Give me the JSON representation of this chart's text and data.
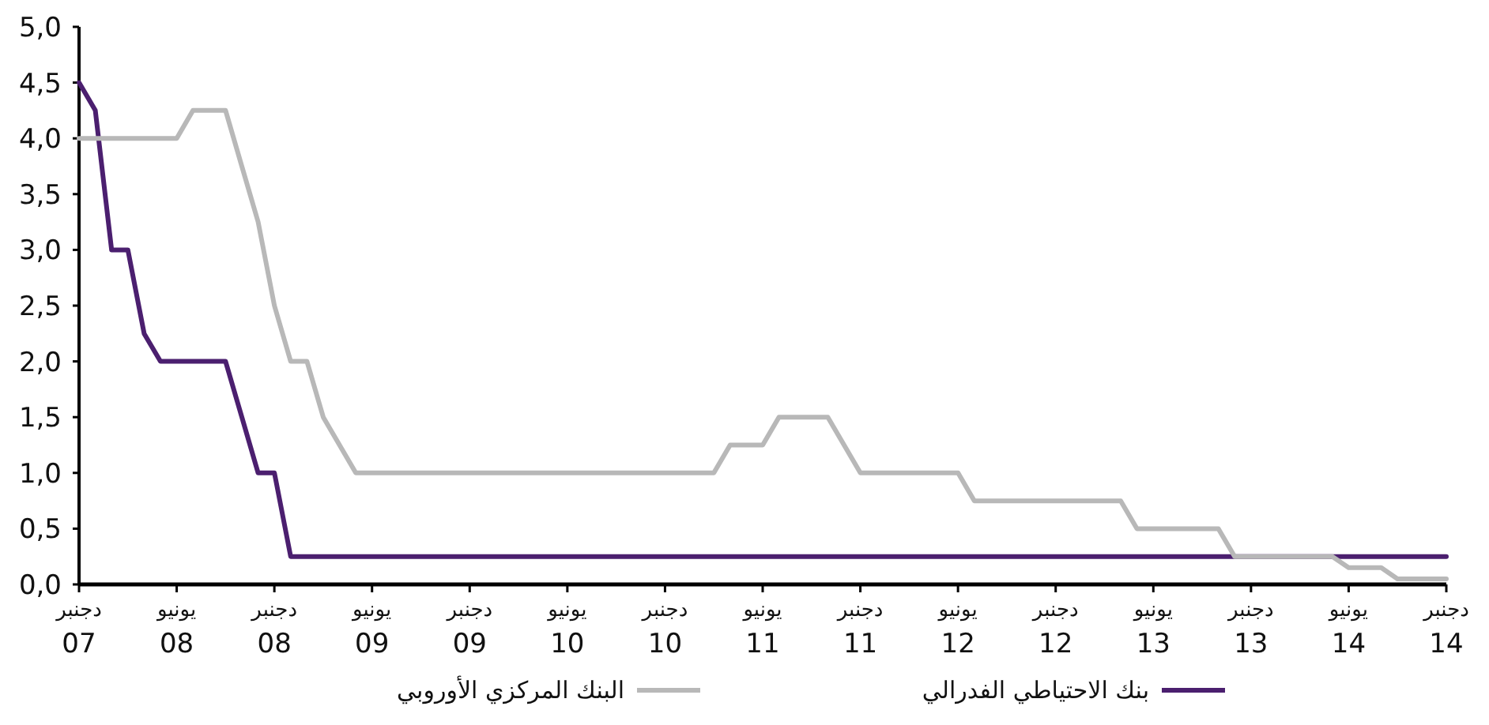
{
  "chart_data": {
    "type": "line",
    "legend": "bottom",
    "grid": false,
    "marker": "none",
    "line_style": "solid",
    "xlim": [
      "2007-12",
      "2014-12"
    ],
    "ylim": [
      0,
      5
    ],
    "yticks": [
      {
        "value": 0,
        "label": "0,0"
      },
      {
        "value": 0.5,
        "label": "0,5"
      },
      {
        "value": 1,
        "label": "1,0"
      },
      {
        "value": 1.5,
        "label": "1,5"
      },
      {
        "value": 2,
        "label": "2,0"
      },
      {
        "value": 2.5,
        "label": "2,5"
      },
      {
        "value": 3,
        "label": "3,0"
      },
      {
        "value": 3.5,
        "label": "3,5"
      },
      {
        "value": 4,
        "label": "4,0"
      },
      {
        "value": 4.5,
        "label": "4,5"
      },
      {
        "value": 5,
        "label": "5,0"
      }
    ],
    "xticks": [
      {
        "value": "2007-12",
        "label": "دجنبر\n07"
      },
      {
        "value": "2008-06",
        "label": "يونيو\n08"
      },
      {
        "value": "2008-12",
        "label": "دجنبر\n08"
      },
      {
        "value": "2009-06",
        "label": "يونيو\n09"
      },
      {
        "value": "2009-12",
        "label": "دجنبر\n09"
      },
      {
        "value": "2010-06",
        "label": "يونيو\n10"
      },
      {
        "value": "2010-12",
        "label": "دجنبر\n10"
      },
      {
        "value": "2011-06",
        "label": "يونيو\n11"
      },
      {
        "value": "2011-12",
        "label": "دجنبر\n11"
      },
      {
        "value": "2012-06",
        "label": "يونيو\n12"
      },
      {
        "value": "2012-12",
        "label": "دجنبر\n12"
      },
      {
        "value": "2013-06",
        "label": "يونيو\n13"
      },
      {
        "value": "2013-12",
        "label": "دجنبر\n13"
      },
      {
        "value": "2014-06",
        "label": "يونيو\n14"
      },
      {
        "value": "2014-12",
        "label": "دجنبر\n14"
      }
    ],
    "series": [
      {
        "name": "بنك الاحتياطي الفدرالي",
        "color": "#4b1f6f",
        "x": [
          "2007-12",
          "2008-01",
          "2008-02",
          "2008-03",
          "2008-04",
          "2008-05",
          "2008-09",
          "2008-10",
          "2008-11",
          "2008-12",
          "2009-01",
          "2014-12"
        ],
        "values": [
          4.5,
          4.25,
          3.0,
          3.0,
          2.25,
          2.0,
          2.0,
          1.5,
          1.0,
          1.0,
          0.25,
          0.25
        ]
      },
      {
        "name": "البنك المركزي الأوروبي",
        "color": "#b8b8b8",
        "x": [
          "2007-12",
          "2008-06",
          "2008-07",
          "2008-09",
          "2008-10",
          "2008-11",
          "2008-12",
          "2009-01",
          "2009-02",
          "2009-03",
          "2009-04",
          "2009-05",
          "2011-03",
          "2011-04",
          "2011-06",
          "2011-07",
          "2011-10",
          "2011-12",
          "2012-06",
          "2012-07",
          "2013-04",
          "2013-05",
          "2013-10",
          "2013-11",
          "2014-05",
          "2014-06",
          "2014-08",
          "2014-09",
          "2014-12"
        ],
        "values": [
          4.0,
          4.0,
          4.25,
          4.25,
          3.75,
          3.25,
          2.5,
          2.0,
          2.0,
          1.5,
          1.25,
          1.0,
          1.0,
          1.25,
          1.25,
          1.5,
          1.5,
          1.0,
          1.0,
          0.75,
          0.75,
          0.5,
          0.5,
          0.25,
          0.25,
          0.15,
          0.15,
          0.05,
          0.05
        ]
      }
    ]
  }
}
